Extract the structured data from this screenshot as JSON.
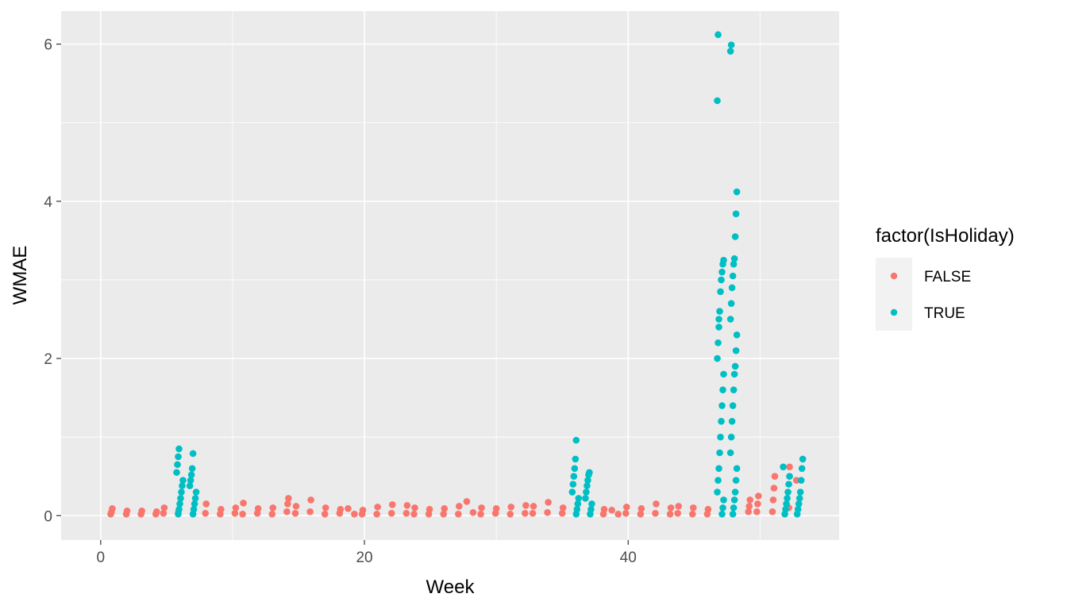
{
  "chart_data": {
    "type": "scatter",
    "xlabel": "Week",
    "ylabel": "WMAE",
    "xlim": [
      -3,
      56
    ],
    "ylim": [
      -0.31,
      6.42
    ],
    "xticks": [
      0,
      20,
      40
    ],
    "yticks": [
      0,
      2,
      4,
      6
    ],
    "xticks_minor": [
      10,
      30,
      50
    ],
    "yticks_minor": [
      1,
      3,
      5
    ],
    "grid": true,
    "legend_position": "right",
    "legend": {
      "title": "factor(IsHoliday)",
      "entries": [
        {
          "label": "FALSE",
          "color": "#F8766D"
        },
        {
          "label": "TRUE",
          "color": "#00BFC4"
        }
      ]
    },
    "series": [
      {
        "name": "FALSE",
        "color": "#F8766D",
        "x": [
          1,
          1,
          1,
          2,
          2,
          3,
          3,
          4,
          4,
          5,
          5,
          6,
          8,
          8,
          9,
          9,
          10,
          10,
          11,
          11,
          12,
          12,
          13,
          13,
          14,
          14,
          14,
          15,
          15,
          16,
          16,
          17,
          17,
          18,
          18,
          19,
          19,
          20,
          20,
          21,
          21,
          22,
          22,
          23,
          23,
          24,
          24,
          25,
          25,
          26,
          26,
          27,
          27,
          28,
          28,
          29,
          29,
          30,
          30,
          31,
          31,
          32,
          32,
          33,
          33,
          34,
          34,
          35,
          35,
          38,
          38,
          39,
          39,
          40,
          40,
          41,
          41,
          42,
          42,
          43,
          43,
          44,
          44,
          45,
          45,
          46,
          46,
          49,
          49,
          49,
          50,
          50,
          50,
          51,
          51,
          51,
          51,
          52,
          52,
          53
        ],
        "y": [
          0.02,
          0.05,
          0.09,
          0.02,
          0.06,
          0.02,
          0.06,
          0.02,
          0.05,
          0.03,
          0.1,
          0.04,
          0.03,
          0.15,
          0.02,
          0.08,
          0.03,
          0.1,
          0.02,
          0.16,
          0.03,
          0.09,
          0.02,
          0.1,
          0.05,
          0.15,
          0.22,
          0.03,
          0.12,
          0.05,
          0.2,
          0.02,
          0.1,
          0.03,
          0.08,
          0.02,
          0.09,
          0.02,
          0.07,
          0.02,
          0.11,
          0.03,
          0.14,
          0.03,
          0.13,
          0.02,
          0.1,
          0.02,
          0.08,
          0.02,
          0.09,
          0.02,
          0.12,
          0.04,
          0.18,
          0.02,
          0.1,
          0.03,
          0.09,
          0.02,
          0.11,
          0.03,
          0.13,
          0.03,
          0.12,
          0.04,
          0.17,
          0.03,
          0.1,
          0.02,
          0.08,
          0.02,
          0.07,
          0.03,
          0.11,
          0.02,
          0.09,
          0.03,
          0.15,
          0.02,
          0.1,
          0.03,
          0.12,
          0.02,
          0.1,
          0.02,
          0.08,
          0.05,
          0.12,
          0.2,
          0.05,
          0.15,
          0.25,
          0.05,
          0.2,
          0.35,
          0.5,
          0.1,
          0.62,
          0.45
        ]
      },
      {
        "name": "TRUE",
        "color": "#00BFC4",
        "x": [
          6,
          6,
          6,
          6,
          6,
          6,
          6,
          6,
          6,
          6,
          6,
          7,
          7,
          7,
          7,
          7,
          7,
          7,
          7,
          7,
          7,
          36,
          36,
          36,
          36,
          36,
          36,
          36,
          36,
          36,
          36,
          37,
          37,
          37,
          37,
          37,
          37,
          37,
          37,
          37,
          47,
          47,
          47,
          47,
          47,
          47,
          47,
          47,
          47,
          47,
          47,
          47,
          47,
          47,
          47,
          47,
          47,
          47,
          47,
          47,
          47,
          47,
          47,
          47,
          48,
          48,
          48,
          48,
          48,
          48,
          48,
          48,
          48,
          48,
          48,
          48,
          48,
          48,
          48,
          48,
          48,
          48,
          48,
          48,
          48,
          48,
          48,
          48,
          48,
          48,
          52,
          52,
          52,
          52,
          52,
          52,
          52,
          52,
          53,
          53,
          53,
          53,
          53,
          53,
          53,
          53
        ],
        "y": [
          0.02,
          0.08,
          0.15,
          0.22,
          0.3,
          0.38,
          0.45,
          0.55,
          0.65,
          0.75,
          0.85,
          0.02,
          0.08,
          0.15,
          0.22,
          0.3,
          0.38,
          0.45,
          0.52,
          0.6,
          0.79,
          0.02,
          0.08,
          0.15,
          0.22,
          0.3,
          0.4,
          0.5,
          0.6,
          0.72,
          0.96,
          0.02,
          0.08,
          0.15,
          0.22,
          0.3,
          0.38,
          0.45,
          0.52,
          0.55,
          0.02,
          0.1,
          0.2,
          0.3,
          0.45,
          0.6,
          0.8,
          1.0,
          1.2,
          1.4,
          1.6,
          1.8,
          2.0,
          2.2,
          2.4,
          2.6,
          2.85,
          3.0,
          3.1,
          3.2,
          3.25,
          5.28,
          6.12,
          2.5,
          0.02,
          0.1,
          0.2,
          0.3,
          0.45,
          0.6,
          0.8,
          1.0,
          1.2,
          1.4,
          1.6,
          1.8,
          1.9,
          2.1,
          2.3,
          2.5,
          2.7,
          2.9,
          3.05,
          3.2,
          3.27,
          3.55,
          3.84,
          4.12,
          5.91,
          5.99,
          0.02,
          0.08,
          0.15,
          0.22,
          0.3,
          0.4,
          0.5,
          0.62,
          0.02,
          0.08,
          0.15,
          0.22,
          0.3,
          0.45,
          0.6,
          0.72
        ]
      }
    ]
  }
}
